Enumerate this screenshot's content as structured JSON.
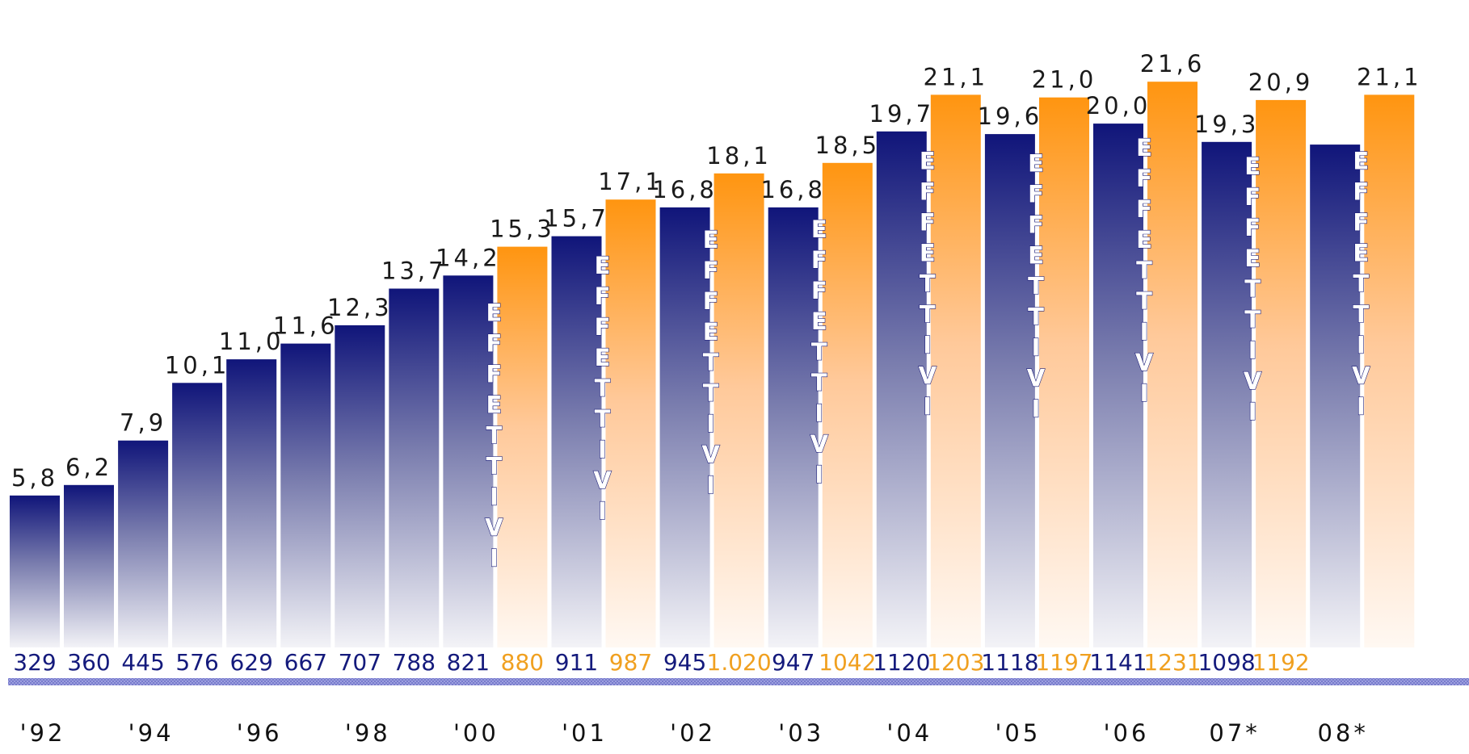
{
  "chart_data": {
    "type": "bar",
    "title": "",
    "xlabel": "",
    "ylabel": "",
    "ylim": [
      0,
      22.5
    ],
    "grid": false,
    "legend": "none",
    "bars": [
      {
        "value": 5.8,
        "value_label": "5,8",
        "count": "329",
        "kind": "base"
      },
      {
        "value": 6.2,
        "value_label": "6,2",
        "count": "360",
        "kind": "base"
      },
      {
        "value": 7.9,
        "value_label": "7,9",
        "count": "445",
        "kind": "base"
      },
      {
        "value": 10.1,
        "value_label": "10,1",
        "count": "576",
        "kind": "base"
      },
      {
        "value": 11.0,
        "value_label": "11,0",
        "count": "629",
        "kind": "base"
      },
      {
        "value": 11.6,
        "value_label": "11,6",
        "count": "667",
        "kind": "base"
      },
      {
        "value": 12.3,
        "value_label": "12,3",
        "count": "707",
        "kind": "base"
      },
      {
        "value": 13.7,
        "value_label": "13,7",
        "count": "788",
        "kind": "base"
      },
      {
        "value": 14.2,
        "value_label": "14,2",
        "count": "821",
        "kind": "base"
      },
      {
        "value": 15.3,
        "value_label": "15,3",
        "count": "880",
        "kind": "effettivi"
      },
      {
        "value": 15.7,
        "value_label": "15,7",
        "count": "911",
        "kind": "base"
      },
      {
        "value": 17.1,
        "value_label": "17,1",
        "count": "987",
        "kind": "effettivi"
      },
      {
        "value": 16.8,
        "value_label": "16,8",
        "count": "945",
        "kind": "base"
      },
      {
        "value": 18.1,
        "value_label": "18,1",
        "count": "1.020",
        "kind": "effettivi"
      },
      {
        "value": 16.8,
        "value_label": "16,8",
        "count": "947",
        "kind": "base"
      },
      {
        "value": 18.5,
        "value_label": "18,5",
        "count": "1042",
        "kind": "effettivi"
      },
      {
        "value": 19.7,
        "value_label": "19,7",
        "count": "1120",
        "kind": "base"
      },
      {
        "value": 21.1,
        "value_label": "21,1",
        "count": "1203",
        "kind": "effettivi"
      },
      {
        "value": 19.6,
        "value_label": "19,6",
        "count": "1118",
        "kind": "base"
      },
      {
        "value": 21.0,
        "value_label": "21,0",
        "count": "1197",
        "kind": "effettivi"
      },
      {
        "value": 20.0,
        "value_label": "20,0",
        "count": "1141",
        "kind": "base"
      },
      {
        "value": 21.6,
        "value_label": "21,6",
        "count": "1231",
        "kind": "effettivi"
      },
      {
        "value": 19.3,
        "value_label": "19,3",
        "count": "1098",
        "kind": "base"
      },
      {
        "value": 20.9,
        "value_label": "20,9",
        "count": "1192",
        "kind": "effettivi"
      },
      {
        "value": 19.2,
        "value_label": "",
        "count": "",
        "kind": "base"
      },
      {
        "value": 21.1,
        "value_label": "21,1",
        "count": "",
        "kind": "effettivi"
      }
    ],
    "x_tick_labels": [
      "'92",
      "'94",
      "'96",
      "'98",
      "'00",
      "'01",
      "'02",
      "'03",
      "'04",
      "'05",
      "'06",
      "07*",
      "08*"
    ],
    "annotations": {
      "effettivi_word": "EFFETTIVI"
    },
    "colors": {
      "base_top": "#10157a",
      "base_bottom": "#f3f3f7",
      "effettivi_top": "#ff9510",
      "effettivi_bottom": "#fff8f2",
      "count_base": "#141a7c",
      "count_effettivi": "#f0a020",
      "baseline": "#8c8fd8"
    }
  }
}
